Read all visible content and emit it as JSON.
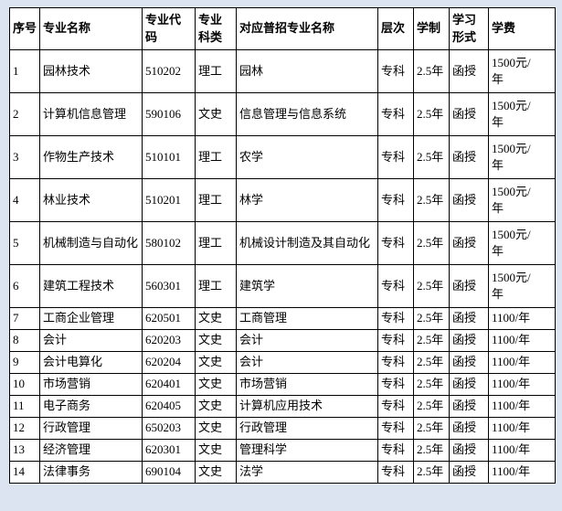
{
  "page": {
    "background_color": "#dbe4f0",
    "cell_background": "#ffffff",
    "border_color": "#000000",
    "text_color": "#000000"
  },
  "table": {
    "headers": [
      "序号",
      "专业名称",
      "专业代码",
      "专业科类",
      "对应普招专业名称",
      "层次",
      "学制",
      "学习形式",
      "学费"
    ],
    "rows": [
      [
        "1",
        "园林技术",
        "510202",
        "理工",
        "园林",
        "专科",
        "2.5年",
        "函授",
        "1500元/年"
      ],
      [
        "2",
        "计算机信息管理",
        "590106",
        "文史",
        "信息管理与信息系统",
        "专科",
        "2.5年",
        "函授",
        "1500元/年"
      ],
      [
        "3",
        "作物生产技术",
        "510101",
        "理工",
        "农学",
        "专科",
        "2.5年",
        "函授",
        "1500元/年"
      ],
      [
        "4",
        "林业技术",
        "510201",
        "理工",
        "林学",
        "专科",
        "2.5年",
        "函授",
        "1500元/年"
      ],
      [
        "5",
        "机械制造与自动化",
        "580102",
        "理工",
        "机械设计制造及其自动化",
        "专科",
        "2.5年",
        "函授",
        "1500元/年"
      ],
      [
        "6",
        "建筑工程技术",
        "560301",
        "理工",
        "建筑学",
        "专科",
        "2.5年",
        "函授",
        "1500元/年"
      ],
      [
        "7",
        "工商企业管理",
        "620501",
        "文史",
        "工商管理",
        "专科",
        "2.5年",
        "函授",
        "1100/年"
      ],
      [
        "8",
        "会计",
        "620203",
        "文史",
        "会计",
        "专科",
        "2.5年",
        "函授",
        "1100/年"
      ],
      [
        "9",
        "会计电算化",
        "620204",
        "文史",
        "会计",
        "专科",
        "2.5年",
        "函授",
        "1100/年"
      ],
      [
        "10",
        "市场营销",
        "620401",
        "文史",
        "市场营销",
        "专科",
        "2.5年",
        "函授",
        "1100/年"
      ],
      [
        "11",
        "电子商务",
        "620405",
        "文史",
        "计算机应用技术",
        "专科",
        "2.5年",
        "函授",
        "1100/年"
      ],
      [
        "12",
        "行政管理",
        "650203",
        "文史",
        "行政管理",
        "专科",
        "2.5年",
        "函授",
        "1100/年"
      ],
      [
        "13",
        "经济管理",
        "620301",
        "文史",
        "管理科学",
        "专科",
        "2.5年",
        "函授",
        "1100/年"
      ],
      [
        "14",
        "法律事务",
        "690104",
        "文史",
        "法学",
        "专科",
        "2.5年",
        "函授",
        "1100/年"
      ]
    ]
  }
}
